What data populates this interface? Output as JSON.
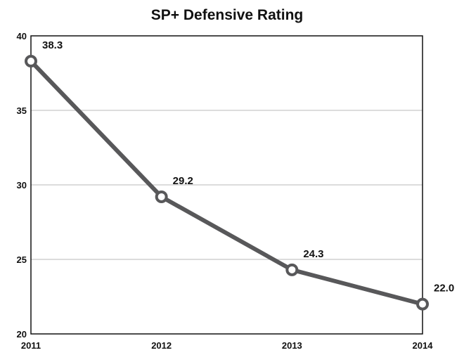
{
  "chart_data": {
    "type": "line",
    "title": "SP+ Defensive Rating",
    "xlabel": "",
    "ylabel": "",
    "categories": [
      "2011",
      "2012",
      "2013",
      "2014"
    ],
    "series": [
      {
        "values": [
          38.3,
          29.2,
          24.3,
          22.0
        ]
      }
    ],
    "data_labels": [
      "38.3",
      "29.2",
      "24.3",
      "22.0"
    ],
    "ylim": [
      20,
      40
    ],
    "yticks": [
      20,
      25,
      30,
      35,
      40
    ],
    "grid": true,
    "legend": "none",
    "colors": {
      "line": "#58585a",
      "marker_fill": "#ffffff",
      "grid": "#c8c8c8",
      "frame": "#111111"
    }
  }
}
